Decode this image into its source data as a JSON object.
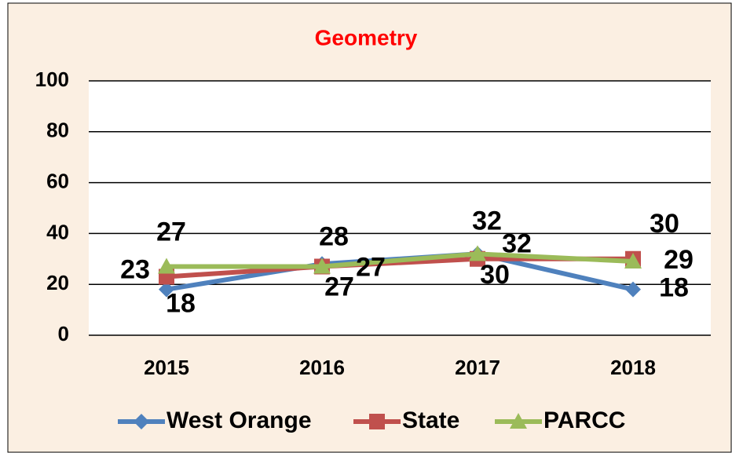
{
  "chart_data": {
    "type": "line",
    "title": "Geometry",
    "categories": [
      "2015",
      "2016",
      "2017",
      "2018"
    ],
    "series": [
      {
        "name": "West Orange",
        "color": "#4f81bd",
        "marker": "diamond",
        "values": [
          18,
          28,
          32,
          18
        ]
      },
      {
        "name": "State",
        "color": "#c0504d",
        "marker": "square",
        "values": [
          23,
          27,
          30,
          30
        ]
      },
      {
        "name": "PARCC",
        "color": "#9bbb59",
        "marker": "triangle",
        "values": [
          27,
          27,
          32,
          29
        ]
      }
    ],
    "ylim": [
      0,
      100
    ],
    "yticks": [
      0,
      20,
      40,
      60,
      80,
      100
    ],
    "grid": true,
    "legend": "bottom"
  }
}
